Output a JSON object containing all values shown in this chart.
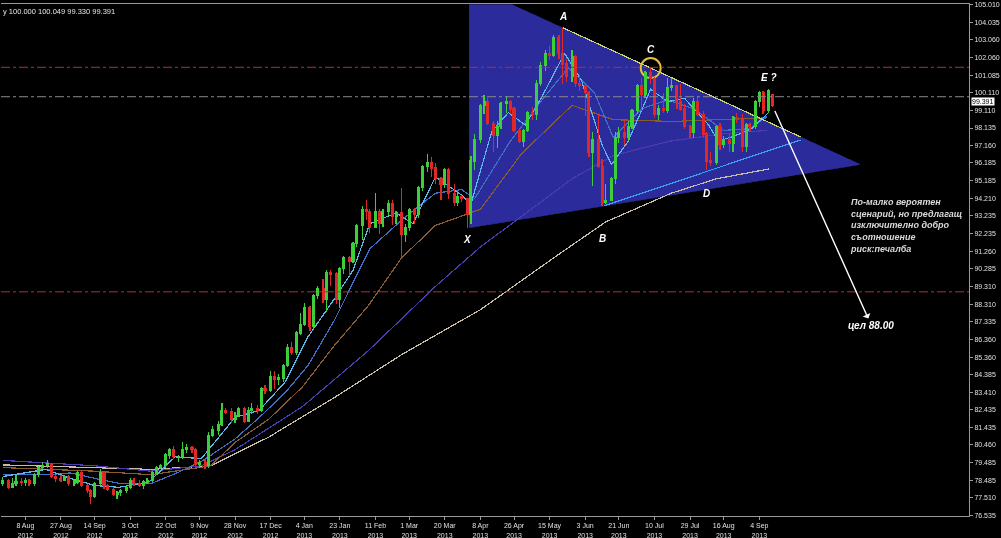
{
  "chart_data": {
    "type": "candlestick",
    "xlim": [
      "2012-07-26",
      "2013-12-25"
    ],
    "xticks": [
      {
        "value": "2012-08-08",
        "label": "8 Aug 2012"
      },
      {
        "value": "2012-08-27",
        "label": "27 Aug 2012"
      },
      {
        "value": "2012-09-14",
        "label": "14 Sep 2012"
      },
      {
        "value": "2012-10-03",
        "label": "3 Oct 2012"
      },
      {
        "value": "2012-10-22",
        "label": "22 Oct 2012"
      },
      {
        "value": "2012-11-09",
        "label": "9 Nov 2012"
      },
      {
        "value": "2012-11-28",
        "label": "28 Nov 2012"
      },
      {
        "value": "2012-12-17",
        "label": "17 Dec 2012"
      },
      {
        "value": "2013-01-04",
        "label": "4 Jan 2013"
      },
      {
        "value": "2013-01-23",
        "label": "23 Jan 2013"
      },
      {
        "value": "2013-02-11",
        "label": "11 Feb 2013"
      },
      {
        "value": "2013-03-01",
        "label": "1 Mar 2013"
      },
      {
        "value": "2013-03-20",
        "label": "20 Mar 2013"
      },
      {
        "value": "2013-04-08",
        "label": "8 Apr 2013"
      },
      {
        "value": "2013-04-26",
        "label": "26 Apr 2013"
      },
      {
        "value": "2013-05-15",
        "label": "15 May 2013"
      },
      {
        "value": "2013-06-03",
        "label": "3 Jun 2013"
      },
      {
        "value": "2013-06-21",
        "label": "21 Jun 2013"
      },
      {
        "value": "2013-07-10",
        "label": "10 Jul 2013"
      },
      {
        "value": "2013-07-29",
        "label": "29 Jul 2013"
      },
      {
        "value": "2013-08-16",
        "label": "16 Aug 2013"
      },
      {
        "value": "2013-09-04",
        "label": "4 Sep 2013"
      }
    ],
    "ylim": [
      76.5,
      105.05
    ],
    "yticks": [
      {
        "value": 105.01,
        "label": "105.010"
      },
      104.035,
      {
        "value": 103.06,
        "label": "103.060"
      },
      {
        "value": 102.06,
        "label": "102.060"
      },
      101.085,
      {
        "value": 100.11,
        "label": "100.110"
      },
      {
        "value": 99.11,
        "label": "99.110"
      },
      98.135,
      {
        "value": 97.16,
        "label": "97.160"
      },
      96.185,
      95.185,
      {
        "value": 94.21,
        "label": "94.210"
      },
      93.235,
      92.235,
      {
        "value": 91.26,
        "label": "91.260"
      },
      90.285,
      {
        "value": 89.31,
        "label": "89.310"
      },
      {
        "value": 88.31,
        "label": "88.310"
      },
      87.335,
      {
        "value": 86.36,
        "label": "86.360"
      },
      {
        "value": 85.36,
        "label": "85.360"
      },
      84.385,
      {
        "value": 83.41,
        "label": "83.410"
      },
      82.435,
      81.435,
      {
        "value": 80.46,
        "label": "80.460"
      },
      79.485,
      78.485,
      {
        "value": 77.51,
        "label": "77.510"
      },
      76.535
    ],
    "ref_lines": [
      {
        "axis": "y",
        "value": 101.52,
        "color": "#b03030",
        "line_style": "dashed"
      },
      {
        "axis": "y",
        "value": 99.88,
        "color": "#8a8a8a",
        "line_style": "dashed"
      },
      {
        "axis": "y",
        "value": 89.0,
        "color": "#b03030",
        "line_style": "dashed"
      }
    ],
    "annotations": [
      "y 100.000 100.049 99.330 99.391",
      "По-малко вероятен\nсценарий, но предлагащ\nизключително добро\nсъотношение\nриск:печалба",
      "цел 88.00",
      "99.391",
      {
        "text": "A",
        "x": "2013-05-22",
        "y": 103.73
      },
      {
        "text": "B",
        "x": "2013-06-12",
        "y": 93.79
      },
      {
        "text": "C",
        "x": "2013-07-08",
        "y": 101.54
      },
      {
        "text": "D",
        "x": "2013-08-07",
        "y": 95.8
      },
      {
        "text": "E ?",
        "x": "2013-09-09",
        "y": 100.3
      },
      {
        "text": "X",
        "x": "2013-04-01",
        "y": 92.57
      }
    ],
    "series": [
      {
        "type": "area",
        "color": "#2b2b9c",
        "x": [
          "2013-04-02",
          "2013-04-25",
          "2013-10-28",
          "2013-04-02"
        ],
        "values": [
          105.01,
          105.01,
          96.1,
          92.57
        ]
      },
      {
        "type": "line",
        "color": "#c8bca8",
        "x": [
          "2012-07-27",
          "2012-10-14",
          "2012-11-15",
          "2012-12-16",
          "2013-01-20",
          "2013-02-25",
          "2013-04-08",
          "2013-05-20",
          "2013-06-14",
          "2013-07-19",
          "2013-08-12",
          "2013-09-09"
        ],
        "values": [
          79.35,
          79.1,
          79.3,
          80.9,
          83.1,
          85.5,
          88.0,
          91.1,
          92.9,
          94.5,
          95.3,
          95.85
        ]
      },
      {
        "type": "line",
        "color": "#4a3cb0",
        "x": [
          "2012-07-27",
          "2012-09-14",
          "2012-10-14",
          "2012-11-10",
          "2012-11-28",
          "2013-01-03",
          "2013-02-07",
          "2013-03-15",
          "2013-04-08",
          "2013-05-27",
          "2013-06-18",
          "2013-07-18",
          "2013-08-15",
          "2013-09-08"
        ],
        "values": [
          79.6,
          79.3,
          79.0,
          79.3,
          80.2,
          82.6,
          85.7,
          89.3,
          91.5,
          95.3,
          96.6,
          97.4,
          97.8,
          98.0
        ]
      },
      {
        "type": "line",
        "color": "#8a5a30",
        "x": [
          "2012-07-27",
          "2012-09-14",
          "2012-10-14",
          "2012-11-15",
          "2012-11-28",
          "2012-12-16",
          "2013-01-03",
          "2013-01-20",
          "2013-02-07",
          "2013-02-25",
          "2013-03-15",
          "2013-04-08",
          "2013-04-30",
          "2013-05-27",
          "2013-06-18",
          "2013-07-20",
          "2013-08-13",
          "2013-09-08"
        ],
        "values": [
          79.2,
          79.0,
          78.8,
          79.3,
          80.6,
          81.9,
          83.7,
          86.0,
          88.2,
          90.9,
          92.7,
          93.6,
          96.7,
          99.4,
          98.6,
          98.5,
          98.6,
          98.7
        ]
      },
      {
        "type": "line",
        "color": "#3f6fc4",
        "x": [
          "2012-07-27",
          "2012-08-19",
          "2012-09-01",
          "2012-09-14",
          "2012-09-28",
          "2012-10-14",
          "2012-10-28",
          "2012-11-11",
          "2012-11-28",
          "2012-12-11",
          "2012-12-25",
          "2013-01-06",
          "2013-01-20",
          "2013-02-08",
          "2013-02-25",
          "2013-03-15",
          "2013-03-29",
          "2013-04-05",
          "2013-04-24",
          "2013-05-11",
          "2013-05-25",
          "2013-06-08",
          "2013-06-18",
          "2013-07-03",
          "2013-07-17",
          "2013-07-31",
          "2013-08-16",
          "2013-08-30",
          "2013-09-08"
        ],
        "values": [
          78.8,
          78.8,
          78.9,
          78.6,
          78.3,
          78.3,
          78.9,
          79.6,
          80.8,
          82.0,
          83.4,
          84.9,
          87.4,
          91.4,
          93.0,
          94.5,
          94.7,
          94.2,
          97.4,
          99.7,
          101.5,
          100.1,
          97.6,
          99.2,
          99.7,
          99.2,
          98.0,
          98.1,
          98.8
        ]
      },
      {
        "type": "line",
        "color": "#5cb8e8",
        "x": [
          "2012-07-27",
          "2012-08-19",
          "2012-09-01",
          "2012-09-14",
          "2012-09-27",
          "2012-10-13",
          "2012-10-27",
          "2012-11-10",
          "2012-11-28",
          "2012-12-11",
          "2012-12-25",
          "2013-01-06",
          "2013-01-20",
          "2013-01-30",
          "2013-02-08",
          "2013-02-22",
          "2013-03-03",
          "2013-03-15",
          "2013-03-29",
          "2013-04-03",
          "2013-04-14",
          "2013-04-23",
          "2013-05-02",
          "2013-05-11",
          "2013-05-23",
          "2013-06-01",
          "2013-06-12",
          "2013-06-17",
          "2013-06-26",
          "2013-07-08",
          "2013-07-17",
          "2013-07-26",
          "2013-08-08",
          "2013-08-13",
          "2013-08-22",
          "2013-08-31",
          "2013-09-09"
        ],
        "values": [
          78.7,
          79.1,
          78.6,
          78.2,
          78.1,
          78.4,
          79.8,
          79.7,
          82.0,
          82.4,
          84.0,
          86.5,
          88.6,
          90.2,
          92.8,
          93.4,
          92.8,
          95.4,
          94.4,
          93.9,
          97.9,
          99.0,
          98.3,
          99.9,
          102.3,
          100.8,
          97.2,
          96.1,
          97.4,
          100.3,
          99.6,
          99.8,
          98.3,
          97.4,
          97.7,
          98.1,
          99.0
        ]
      },
      {
        "type": "line",
        "color": "#c8d67a",
        "x": [
          "2013-05-22",
          "2013-09-26"
        ],
        "values": [
          103.73,
          97.64
        ]
      },
      {
        "type": "line",
        "color": "#3c9ff0",
        "x": [
          "2013-06-13",
          "2013-08-08",
          "2013-09-26"
        ],
        "values": [
          93.79,
          95.75,
          97.47
        ]
      },
      {
        "type": "scatter",
        "marker": "circle",
        "color": "#e8c030",
        "x": [
          "2013-07-08"
        ],
        "values": [
          101.48
        ]
      },
      {
        "color": "#3ccf3c",
        "x": [
          "2012-07-27",
          "2012-08-01",
          "2012-08-03",
          "2012-08-08",
          "2012-08-13",
          "2012-08-15",
          "2012-08-17",
          "2012-08-20",
          "2012-08-29",
          "2012-09-03",
          "2012-09-05",
          "2012-09-14",
          "2012-09-17",
          "2012-09-26",
          "2012-09-28",
          "2012-10-01",
          "2012-10-03",
          "2012-10-10",
          "2012-10-12",
          "2012-10-15",
          "2012-10-17",
          "2012-10-19",
          "2012-10-22",
          "2012-10-24",
          "2012-10-29",
          "2012-10-31",
          "2012-11-02",
          "2012-11-09",
          "2012-11-14",
          "2012-11-16",
          "2012-11-19",
          "2012-11-21",
          "2012-11-28",
          "2012-11-30",
          "2012-12-05",
          "2012-12-07",
          "2012-12-12",
          "2012-12-17",
          "2012-12-21",
          "2012-12-24",
          "2012-12-26",
          "2012-12-31",
          "2013-01-02",
          "2013-01-04",
          "2013-01-09",
          "2013-01-11",
          "2013-01-16",
          "2013-01-23",
          "2013-01-25",
          "2013-01-30",
          "2013-02-01",
          "2013-02-04",
          "2013-02-11",
          "2013-02-15",
          "2013-02-18",
          "2013-02-22",
          "2013-02-27",
          "2013-03-01",
          "2013-03-06",
          "2013-03-08",
          "2013-03-11",
          "2013-03-20",
          "2013-03-27",
          "2013-04-03",
          "2013-04-05",
          "2013-04-08",
          "2013-04-10",
          "2013-04-17",
          "2013-04-19",
          "2013-04-22",
          "2013-05-01",
          "2013-05-03",
          "2013-05-08",
          "2013-05-10",
          "2013-05-13",
          "2013-05-17",
          "2013-05-27",
          "2013-06-07",
          "2013-06-14",
          "2013-06-17",
          "2013-06-19",
          "2013-06-21",
          "2013-06-26",
          "2013-06-28",
          "2013-07-01",
          "2013-07-05",
          "2013-07-12",
          "2013-07-17",
          "2013-07-19",
          "2013-07-31",
          "2013-08-12",
          "2013-08-16",
          "2013-08-21",
          "2013-08-28",
          "2013-09-02",
          "2013-09-04",
          "2013-09-09"
        ],
        "ohlc": [
          [
            78.3,
            78.65,
            78.2,
            78.45
          ],
          [
            78.1,
            78.6,
            78.05,
            78.3
          ],
          [
            78.3,
            78.8,
            78.2,
            78.4
          ],
          [
            78.35,
            78.6,
            78.2,
            78.5
          ],
          [
            78.3,
            78.9,
            78.2,
            78.8
          ],
          [
            78.8,
            79.3,
            78.7,
            79.2
          ],
          [
            79.2,
            79.5,
            79.1,
            79.3
          ],
          [
            79.3,
            79.65,
            79.2,
            79.4
          ],
          [
            78.5,
            78.8,
            78.5,
            78.7
          ],
          [
            78.3,
            78.5,
            78.2,
            78.4
          ],
          [
            78.4,
            79.0,
            78.3,
            78.9
          ],
          [
            77.6,
            78.4,
            77.5,
            78.3
          ],
          [
            78.3,
            79.1,
            78.2,
            78.9
          ],
          [
            77.7,
            77.9,
            77.45,
            77.8
          ],
          [
            77.8,
            78.0,
            77.6,
            77.9
          ],
          [
            77.9,
            78.2,
            77.8,
            78.1
          ],
          [
            78.1,
            78.6,
            78.0,
            78.5
          ],
          [
            78.2,
            78.5,
            78.0,
            78.4
          ],
          [
            78.4,
            78.6,
            78.3,
            78.5
          ],
          [
            78.5,
            79.0,
            78.4,
            78.9
          ],
          [
            78.9,
            79.3,
            78.8,
            79.2
          ],
          [
            79.2,
            79.4,
            79.1,
            79.3
          ],
          [
            79.3,
            80.0,
            79.2,
            79.9
          ],
          [
            79.9,
            80.3,
            79.7,
            80.2
          ],
          [
            79.8,
            79.9,
            79.5,
            79.8
          ],
          [
            79.8,
            80.6,
            79.7,
            80.2
          ],
          [
            80.2,
            80.5,
            80.0,
            80.3
          ],
          [
            79.4,
            79.6,
            79.2,
            79.5
          ],
          [
            79.3,
            81.2,
            79.2,
            81.0
          ],
          [
            81.0,
            81.5,
            80.9,
            81.3
          ],
          [
            81.3,
            81.8,
            81.0,
            81.6
          ],
          [
            81.6,
            82.8,
            81.5,
            82.4
          ],
          [
            81.9,
            82.3,
            81.7,
            82.1
          ],
          [
            82.1,
            82.6,
            82.0,
            82.5
          ],
          [
            81.8,
            82.6,
            81.8,
            82.4
          ],
          [
            82.4,
            82.8,
            82.2,
            82.5
          ],
          [
            82.4,
            83.7,
            82.3,
            83.6
          ],
          [
            83.5,
            84.6,
            83.4,
            84.3
          ],
          [
            84.1,
            84.4,
            83.8,
            84.2
          ],
          [
            84.2,
            85.0,
            84.0,
            84.9
          ],
          [
            84.9,
            86.1,
            84.8,
            85.9
          ],
          [
            85.6,
            86.8,
            85.5,
            86.7
          ],
          [
            86.7,
            87.8,
            86.6,
            87.2
          ],
          [
            87.2,
            88.4,
            87.1,
            88.1
          ],
          [
            87.1,
            88.9,
            87.0,
            88.8
          ],
          [
            88.8,
            89.3,
            88.6,
            89.2
          ],
          [
            88.6,
            90.2,
            87.9,
            90.1
          ],
          [
            88.6,
            90.4,
            88.1,
            90.3
          ],
          [
            90.3,
            91.0,
            90.0,
            90.9
          ],
          [
            90.7,
            91.8,
            90.6,
            91.7
          ],
          [
            91.7,
            92.8,
            91.5,
            92.7
          ],
          [
            92.7,
            93.8,
            91.9,
            93.6
          ],
          [
            92.6,
            94.5,
            92.6,
            93.5
          ],
          [
            92.8,
            93.6,
            92.6,
            93.5
          ],
          [
            93.5,
            94.1,
            93.3,
            93.9
          ],
          [
            93.2,
            93.5,
            92.8,
            93.4
          ],
          [
            92.2,
            92.8,
            91.8,
            92.6
          ],
          [
            92.6,
            93.7,
            92.4,
            93.6
          ],
          [
            93.3,
            94.9,
            93.1,
            94.8
          ],
          [
            94.8,
            96.1,
            94.6,
            96.0
          ],
          [
            96.0,
            96.7,
            95.7,
            96.2
          ],
          [
            95.0,
            95.9,
            94.8,
            95.8
          ],
          [
            94.0,
            94.6,
            93.8,
            94.3
          ],
          [
            93.3,
            96.6,
            92.8,
            96.3
          ],
          [
            96.3,
            97.8,
            95.8,
            97.5
          ],
          [
            97.5,
            99.5,
            97.3,
            99.4
          ],
          [
            99.4,
            99.95,
            98.9,
            99.6
          ],
          [
            97.7,
            98.5,
            97.0,
            98.2
          ],
          [
            98.2,
            99.6,
            98.1,
            99.5
          ],
          [
            99.5,
            99.9,
            99.0,
            99.6
          ],
          [
            97.4,
            98.1,
            97.1,
            98.0
          ],
          [
            98.0,
            99.1,
            97.9,
            99.0
          ],
          [
            98.9,
            100.8,
            98.6,
            100.6
          ],
          [
            100.6,
            101.8,
            100.5,
            101.6
          ],
          [
            101.6,
            102.5,
            101.3,
            102.3
          ],
          [
            102.2,
            103.3,
            102.1,
            103.2
          ],
          [
            101.0,
            102.5,
            100.7,
            102.1
          ],
          [
            96.8,
            97.9,
            94.9,
            97.5
          ],
          [
            94.0,
            95.0,
            93.9,
            94.1
          ],
          [
            94.1,
            95.4,
            94.1,
            95.3
          ],
          [
            95.3,
            97.9,
            95.0,
            97.6
          ],
          [
            97.6,
            98.2,
            97.3,
            97.9
          ],
          [
            97.6,
            98.5,
            97.4,
            98.2
          ],
          [
            98.2,
            99.2,
            98.1,
            99.1
          ],
          [
            99.1,
            100.6,
            98.9,
            100.5
          ],
          [
            100.0,
            101.3,
            99.8,
            101.2
          ],
          [
            98.9,
            99.4,
            98.6,
            99.2
          ],
          [
            99.1,
            100.9,
            99.0,
            100.4
          ],
          [
            100.4,
            100.9,
            100.2,
            100.5
          ],
          [
            97.9,
            99.8,
            97.6,
            99.6
          ],
          [
            96.2,
            98.3,
            96.1,
            98.2
          ],
          [
            97.2,
            97.7,
            97.0,
            97.5
          ],
          [
            97.3,
            98.8,
            96.8,
            98.7
          ],
          [
            97.1,
            98.4,
            96.8,
            98.3
          ],
          [
            98.2,
            99.7,
            98.1,
            99.6
          ],
          [
            99.6,
            100.2,
            99.3,
            100.1
          ],
          [
            99.1,
            100.3,
            99.0,
            100.2
          ]
        ]
      },
      {
        "color": "#e02828",
        "x": [
          "2012-07-30",
          "2012-08-06",
          "2012-08-10",
          "2012-08-22",
          "2012-08-24",
          "2012-08-27",
          "2012-08-31",
          "2012-09-07",
          "2012-09-10",
          "2012-09-12",
          "2012-09-19",
          "2012-09-21",
          "2012-09-24",
          "2012-10-05",
          "2012-10-08",
          "2012-10-26",
          "2012-11-05",
          "2012-11-07",
          "2012-11-12",
          "2012-11-23",
          "2012-11-26",
          "2012-12-03",
          "2012-12-10",
          "2012-12-14",
          "2012-12-19",
          "2012-12-28",
          "2013-01-07",
          "2013-01-14",
          "2013-01-18",
          "2013-01-21",
          "2013-01-28",
          "2013-02-06",
          "2013-02-08",
          "2013-02-13",
          "2013-02-20",
          "2013-02-25",
          "2013-03-04",
          "2013-03-13",
          "2013-03-15",
          "2013-03-18",
          "2013-03-22",
          "2013-03-25",
          "2013-03-29",
          "2013-04-01",
          "2013-04-12",
          "2013-04-15",
          "2013-04-24",
          "2013-04-26",
          "2013-04-29",
          "2013-05-06",
          "2013-05-15",
          "2013-05-20",
          "2013-05-22",
          "2013-05-24",
          "2013-05-29",
          "2013-05-31",
          "2013-06-03",
          "2013-06-05",
          "2013-06-10",
          "2013-06-12",
          "2013-06-24",
          "2013-07-03",
          "2013-07-08",
          "2013-07-10",
          "2013-07-15",
          "2013-07-22",
          "2013-07-24",
          "2013-07-26",
          "2013-07-29",
          "2013-08-02",
          "2013-08-05",
          "2013-08-07",
          "2013-08-09",
          "2013-08-14",
          "2013-08-19",
          "2013-08-23",
          "2013-08-26",
          "2013-08-30",
          "2013-09-06",
          "2013-09-11"
        ],
        "ohlc": [
          [
            78.45,
            78.55,
            78.0,
            78.1
          ],
          [
            78.4,
            78.6,
            78.2,
            78.35
          ],
          [
            78.5,
            78.55,
            78.2,
            78.3
          ],
          [
            79.4,
            79.45,
            78.6,
            78.7
          ],
          [
            78.7,
            78.8,
            78.4,
            78.6
          ],
          [
            78.6,
            78.8,
            78.4,
            78.5
          ],
          [
            78.7,
            78.8,
            78.2,
            78.3
          ],
          [
            78.9,
            79.0,
            78.1,
            78.2
          ],
          [
            78.2,
            78.3,
            77.8,
            77.9
          ],
          [
            77.9,
            78.0,
            77.15,
            77.6
          ],
          [
            78.9,
            78.9,
            78.0,
            78.2
          ],
          [
            78.2,
            78.3,
            77.9,
            78.0
          ],
          [
            78.0,
            78.1,
            77.6,
            77.7
          ],
          [
            78.5,
            78.6,
            78.2,
            78.3
          ],
          [
            78.3,
            78.5,
            78.1,
            78.2
          ],
          [
            80.2,
            80.4,
            79.7,
            79.8
          ],
          [
            80.3,
            80.4,
            80.0,
            80.2
          ],
          [
            80.2,
            80.3,
            79.3,
            79.4
          ],
          [
            79.5,
            79.6,
            79.1,
            79.3
          ],
          [
            82.4,
            82.5,
            82.2,
            82.3
          ],
          [
            82.3,
            82.5,
            81.7,
            81.9
          ],
          [
            82.5,
            82.6,
            81.7,
            81.8
          ],
          [
            82.5,
            82.7,
            82.2,
            82.4
          ],
          [
            83.6,
            83.8,
            83.3,
            83.5
          ],
          [
            84.3,
            84.6,
            83.6,
            84.1
          ],
          [
            85.9,
            86.2,
            85.5,
            85.6
          ],
          [
            88.1,
            88.2,
            86.8,
            87.1
          ],
          [
            89.2,
            89.7,
            88.4,
            88.6
          ],
          [
            90.1,
            90.2,
            89.3,
            90.0
          ],
          [
            90.0,
            90.1,
            88.3,
            88.6
          ],
          [
            90.9,
            91.0,
            89.9,
            90.7
          ],
          [
            93.6,
            94.1,
            93.0,
            93.5
          ],
          [
            93.5,
            93.6,
            92.3,
            92.6
          ],
          [
            93.5,
            93.6,
            92.2,
            92.8
          ],
          [
            93.9,
            94.1,
            92.7,
            93.2
          ],
          [
            93.4,
            94.8,
            90.85,
            92.2
          ],
          [
            93.6,
            93.7,
            92.8,
            93.3
          ],
          [
            96.2,
            96.5,
            95.4,
            95.9
          ],
          [
            95.9,
            96.2,
            95.0,
            95.3
          ],
          [
            95.3,
            95.4,
            94.1,
            95.0
          ],
          [
            95.8,
            95.9,
            94.2,
            94.5
          ],
          [
            94.5,
            95.0,
            93.8,
            94.0
          ],
          [
            94.3,
            94.4,
            94.0,
            94.2
          ],
          [
            94.2,
            94.2,
            92.57,
            93.3
          ],
          [
            99.6,
            99.8,
            98.3,
            98.4
          ],
          [
            98.4,
            98.5,
            96.8,
            97.7
          ],
          [
            99.6,
            99.7,
            98.9,
            99.2
          ],
          [
            99.2,
            99.3,
            97.9,
            98.0
          ],
          [
            98.0,
            98.1,
            97.3,
            97.4
          ],
          [
            99.0,
            99.3,
            98.6,
            98.9
          ],
          [
            102.3,
            102.7,
            101.9,
            102.2
          ],
          [
            103.2,
            103.3,
            102.0,
            102.3
          ],
          [
            102.3,
            103.73,
            100.6,
            101.7
          ],
          [
            101.7,
            102.0,
            100.7,
            101.0
          ],
          [
            102.1,
            102.2,
            100.4,
            100.6
          ],
          [
            100.6,
            101.1,
            100.2,
            100.5
          ],
          [
            100.5,
            100.6,
            98.8,
            100.1
          ],
          [
            100.1,
            100.2,
            96.5,
            96.8
          ],
          [
            97.5,
            99.0,
            95.9,
            96.0
          ],
          [
            96.0,
            96.4,
            93.79,
            94.0
          ],
          [
            97.9,
            98.6,
            97.2,
            97.6
          ],
          [
            100.5,
            100.9,
            99.1,
            100.0
          ],
          [
            101.2,
            101.54,
            100.6,
            100.9
          ],
          [
            100.9,
            101.0,
            98.7,
            98.9
          ],
          [
            99.2,
            100.1,
            99.0,
            99.1
          ],
          [
            100.5,
            100.5,
            99.2,
            99.6
          ],
          [
            99.6,
            100.6,
            99.1,
            99.2
          ],
          [
            99.2,
            99.5,
            98.1,
            98.2
          ],
          [
            98.2,
            98.3,
            97.6,
            97.9
          ],
          [
            99.6,
            99.9,
            98.8,
            98.9
          ],
          [
            98.9,
            99.1,
            97.6,
            97.8
          ],
          [
            97.8,
            97.9,
            95.8,
            96.3
          ],
          [
            96.3,
            96.8,
            96.0,
            96.2
          ],
          [
            98.2,
            98.4,
            96.9,
            97.2
          ],
          [
            97.5,
            97.8,
            96.8,
            97.3
          ],
          [
            98.7,
            99.0,
            98.4,
            98.6
          ],
          [
            98.6,
            98.9,
            96.8,
            97.1
          ],
          [
            98.3,
            98.4,
            97.9,
            98.2
          ],
          [
            100.1,
            100.2,
            98.9,
            99.1
          ],
          [
            100.0,
            100.049,
            99.33,
            99.391
          ]
        ]
      }
    ]
  }
}
